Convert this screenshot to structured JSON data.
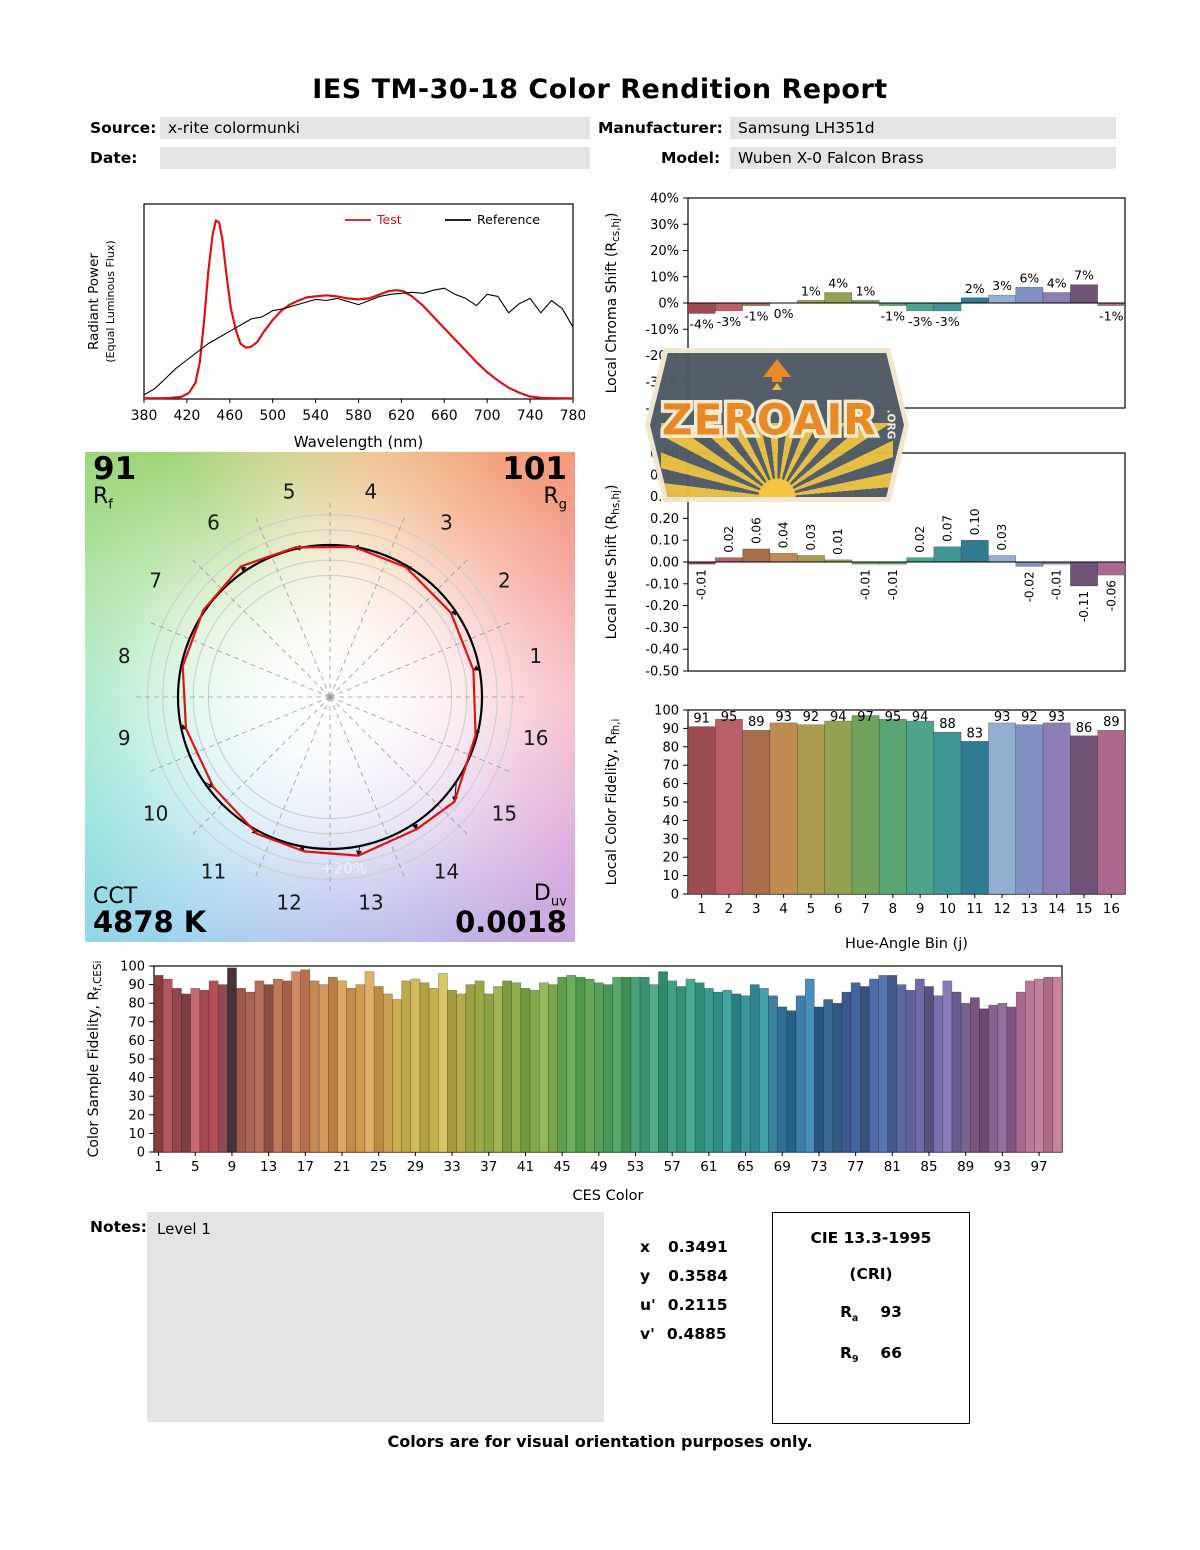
{
  "page": {
    "title": "IES TM-30-18 Color Rendition Report",
    "footer": "Colors are for visual orientation purposes only.",
    "watermark": {
      "main": "ZEROAIR",
      "org": ".ORG"
    }
  },
  "header": {
    "source_label": "Source:",
    "source_value": "x-rite colormunki",
    "manufacturer_label": "Manufacturer:",
    "manufacturer_value": "Samsung LH351d",
    "date_label": "Date:",
    "date_value": "",
    "model_label": "Model:",
    "model_value": "Wuben X-0 Falcon Brass"
  },
  "cvg": {
    "rf_value": "91",
    "rf_label": "R",
    "rf_sub": "f",
    "rg_value": "101",
    "rg_label": "R",
    "rg_sub": "g",
    "cct_label": "CCT",
    "cct_value": "4878 K",
    "duv_label": "D",
    "duv_sub": "uv",
    "duv_value": "0.0018",
    "ring_label": "+20%",
    "bin_labels": [
      "1",
      "2",
      "3",
      "4",
      "5",
      "6",
      "7",
      "8",
      "9",
      "10",
      "11",
      "12",
      "13",
      "14",
      "15",
      "16"
    ]
  },
  "notes": {
    "label": "Notes:",
    "value": "Level 1"
  },
  "chromaticity": {
    "rows": [
      {
        "label": "x",
        "value": "0.3491"
      },
      {
        "label": "y",
        "value": "0.3584"
      },
      {
        "label": "u'",
        "value": "0.2115"
      },
      {
        "label": "v'",
        "value": "0.4885"
      }
    ]
  },
  "cri_box": {
    "title": "CIE 13.3-1995",
    "subtitle": "(CRI)",
    "ra_label": "R",
    "ra_sub": "a",
    "ra_value": "93",
    "r9_label": "R",
    "r9_sub": "9",
    "r9_value": "66"
  },
  "hue_bin_colors": [
    "#9c4d52",
    "#bb5f66",
    "#a96e4e",
    "#c08c52",
    "#ab9b50",
    "#95a253",
    "#73a35a",
    "#5ba573",
    "#4da38c",
    "#3f9694",
    "#2e7b92",
    "#93aed0",
    "#8290c3",
    "#8d7fb5",
    "#6f5478",
    "#ab6a8d"
  ],
  "chart_data": [
    {
      "id": "spd",
      "type": "line",
      "xlabel": "Wavelength (nm)",
      "ylabel": "Radiant Power",
      "ylabel2": "(Equal Luminous Flux)",
      "xlim": [
        380,
        780
      ],
      "ylim": [
        0,
        0.95
      ],
      "xticks": [
        380,
        420,
        460,
        500,
        540,
        580,
        620,
        660,
        700,
        740,
        780
      ],
      "legend": [
        {
          "name": "Test",
          "color": "#dd1111",
          "label_color": "#dd1111"
        },
        {
          "name": "Reference",
          "color": "#000000",
          "label_color": "#000000"
        }
      ],
      "series": [
        {
          "name": "Test",
          "color": "#dd1111",
          "width": 2.2,
          "x": [
            380,
            395,
            405,
            415,
            422,
            428,
            432,
            436,
            440,
            444,
            447,
            450,
            453,
            457,
            461,
            466,
            470,
            475,
            480,
            486,
            492,
            500,
            508,
            516,
            524,
            532,
            540,
            550,
            560,
            570,
            580,
            590,
            600,
            608,
            615,
            622,
            630,
            640,
            650,
            660,
            670,
            680,
            690,
            700,
            710,
            720,
            730,
            740,
            750,
            765,
            780
          ],
          "y": [
            0.004,
            0.004,
            0.006,
            0.01,
            0.03,
            0.08,
            0.18,
            0.38,
            0.62,
            0.8,
            0.87,
            0.86,
            0.78,
            0.6,
            0.44,
            0.33,
            0.27,
            0.25,
            0.255,
            0.28,
            0.33,
            0.385,
            0.43,
            0.46,
            0.48,
            0.495,
            0.5,
            0.505,
            0.5,
            0.49,
            0.485,
            0.49,
            0.51,
            0.525,
            0.53,
            0.525,
            0.5,
            0.455,
            0.4,
            0.345,
            0.29,
            0.235,
            0.18,
            0.13,
            0.09,
            0.055,
            0.03,
            0.012,
            0.006,
            0.004,
            0.003
          ]
        },
        {
          "name": "Reference",
          "color": "#000000",
          "width": 1.1,
          "x": [
            380,
            390,
            400,
            410,
            420,
            430,
            440,
            450,
            460,
            470,
            480,
            490,
            500,
            510,
            520,
            530,
            540,
            550,
            560,
            570,
            580,
            590,
            600,
            610,
            620,
            630,
            640,
            650,
            660,
            670,
            680,
            690,
            700,
            710,
            720,
            730,
            740,
            750,
            760,
            770,
            780
          ],
          "y": [
            0.02,
            0.05,
            0.1,
            0.15,
            0.19,
            0.23,
            0.27,
            0.3,
            0.33,
            0.36,
            0.39,
            0.4,
            0.43,
            0.44,
            0.455,
            0.47,
            0.485,
            0.48,
            0.49,
            0.475,
            0.46,
            0.48,
            0.5,
            0.51,
            0.515,
            0.52,
            0.515,
            0.53,
            0.54,
            0.51,
            0.49,
            0.455,
            0.51,
            0.5,
            0.42,
            0.465,
            0.49,
            0.42,
            0.48,
            0.44,
            0.35
          ]
        }
      ]
    },
    {
      "id": "chroma_shift",
      "type": "bar",
      "ylabel_rich": [
        {
          "t": "Local Chroma Shift (R"
        },
        {
          "t": "cs,hj",
          "sub": true
        },
        {
          "t": ")"
        }
      ],
      "ylim": [
        -40,
        40
      ],
      "yticks": [
        40,
        30,
        20,
        10,
        0,
        -10,
        -20,
        -30,
        -40
      ],
      "ytick_labels": [
        "40%",
        "30%",
        "20%",
        "10%",
        "0%",
        "-10%",
        "-20%",
        "-30%",
        "-40%"
      ],
      "categories": [
        1,
        2,
        3,
        4,
        5,
        6,
        7,
        8,
        9,
        10,
        11,
        12,
        13,
        14,
        15,
        16
      ],
      "values": [
        -4,
        -3,
        -1,
        0,
        1,
        4,
        1,
        -1,
        -3,
        -3,
        2,
        3,
        6,
        4,
        7,
        -1
      ],
      "labels": [
        "-4%",
        "-3%",
        "-1%",
        "0%",
        "1%",
        "4%",
        "1%",
        "-1%",
        "-3%",
        "-3%",
        "2%",
        "3%",
        "6%",
        "4%",
        "7%",
        "-1%"
      ]
    },
    {
      "id": "hue_shift",
      "type": "bar",
      "ylabel_rich": [
        {
          "t": "Local Hue Shift (R"
        },
        {
          "t": "hs,hj",
          "sub": true
        },
        {
          "t": ")"
        }
      ],
      "ylim": [
        -0.5,
        0.5
      ],
      "yticks": [
        0.5,
        0.4,
        0.3,
        0.2,
        0.1,
        0,
        -0.1,
        -0.2,
        -0.3,
        -0.4,
        -0.5
      ],
      "ytick_labels": [
        "0.50",
        "0.40",
        "0.30",
        "0.20",
        "0.10",
        "0.00",
        "-0.10",
        "-0.20",
        "-0.30",
        "-0.40",
        "-0.50"
      ],
      "categories": [
        1,
        2,
        3,
        4,
        5,
        6,
        7,
        8,
        9,
        10,
        11,
        12,
        13,
        14,
        15,
        16
      ],
      "values": [
        -0.01,
        0.02,
        0.06,
        0.04,
        0.03,
        0.01,
        -0.01,
        -0.01,
        0.02,
        0.07,
        0.1,
        0.03,
        -0.02,
        -0.01,
        -0.11,
        -0.06
      ],
      "labels": [
        "-0.01",
        "0.02",
        "0.06",
        "0.04",
        "0.03",
        "0.01",
        "-0.01",
        "-0.01",
        "0.02",
        "0.07",
        "0.10",
        "0.03",
        "-0.02",
        "-0.01",
        "-0.11",
        "-0.06"
      ]
    },
    {
      "id": "local_fidelity",
      "type": "bar",
      "ylabel_rich": [
        {
          "t": "Local Color Fidelity, R"
        },
        {
          "t": "fh,i",
          "sub": true
        }
      ],
      "xlabel": "Hue-Angle Bin (j)",
      "ylim": [
        0,
        100
      ],
      "yticks": [
        100,
        90,
        80,
        70,
        60,
        50,
        40,
        30,
        20,
        10,
        0
      ],
      "ytick_labels": [
        "100",
        "90",
        "80",
        "70",
        "60",
        "50",
        "40",
        "30",
        "20",
        "10",
        "0"
      ],
      "categories": [
        1,
        2,
        3,
        4,
        5,
        6,
        7,
        8,
        9,
        10,
        11,
        12,
        13,
        14,
        15,
        16
      ],
      "xticks": [
        1,
        2,
        3,
        4,
        5,
        6,
        7,
        8,
        9,
        10,
        11,
        12,
        13,
        14,
        15,
        16
      ],
      "values": [
        91,
        95,
        89,
        93,
        92,
        94,
        97,
        95,
        94,
        88,
        83,
        93,
        92,
        93,
        86,
        89
      ],
      "labels": [
        "91",
        "95",
        "89",
        "93",
        "92",
        "94",
        "97",
        "95",
        "94",
        "88",
        "83",
        "93",
        "92",
        "93",
        "86",
        "89"
      ]
    },
    {
      "id": "ces",
      "type": "bar",
      "ylabel_rich": [
        {
          "t": "Color Sample Fidelity, R"
        },
        {
          "t": "f,CESi",
          "sub": true
        }
      ],
      "xlabel": "CES Color",
      "ylim": [
        0,
        100
      ],
      "yticks": [
        100,
        90,
        80,
        70,
        60,
        50,
        40,
        30,
        20,
        10,
        0
      ],
      "ytick_labels": [
        "100",
        "90",
        "80",
        "70",
        "60",
        "50",
        "40",
        "30",
        "20",
        "10",
        "0"
      ],
      "xticks": [
        1,
        5,
        9,
        13,
        17,
        21,
        25,
        29,
        33,
        37,
        41,
        45,
        49,
        53,
        57,
        61,
        65,
        69,
        73,
        77,
        81,
        85,
        89,
        93,
        97
      ],
      "values": [
        95,
        93,
        88,
        85,
        88,
        87,
        92,
        90,
        99,
        88,
        86,
        92,
        90,
        93,
        92,
        97,
        98,
        92,
        90,
        94,
        92,
        88,
        90,
        97,
        89,
        85,
        82,
        92,
        93,
        91,
        88,
        96,
        87,
        85,
        90,
        92,
        85,
        89,
        92,
        91,
        88,
        87,
        91,
        90,
        94,
        95,
        94,
        93,
        91,
        90,
        94,
        94,
        94,
        94,
        90,
        97,
        92,
        89,
        93,
        91,
        88,
        86,
        87,
        85,
        84,
        90,
        88,
        84,
        78,
        76,
        84,
        93,
        78,
        82,
        80,
        86,
        91,
        89,
        93,
        95,
        95,
        90,
        87,
        93,
        89,
        84,
        92,
        86,
        80,
        83,
        77,
        79,
        80,
        78,
        86,
        92,
        93,
        94,
        94
      ],
      "colors": [
        "#8a3a3f",
        "#b05a5f",
        "#96454a",
        "#7d3f45",
        "#c96a6e",
        "#a34a50",
        "#b45055",
        "#8f4a55",
        "#463238",
        "#9c5a4a",
        "#aa6450",
        "#b3705a",
        "#8a4f3d",
        "#c07a5a",
        "#a65f46",
        "#d08a62",
        "#b86f4e",
        "#c58a50",
        "#d29a5a",
        "#b97f45",
        "#dca761",
        "#c08c4a",
        "#cf9a52",
        "#e0b06a",
        "#ba8a43",
        "#caa054",
        "#ccae4e",
        "#bfa845",
        "#d4bc5c",
        "#b3a040",
        "#c2b14d",
        "#d8c865",
        "#a89a3f",
        "#b5ab4c",
        "#9fa044",
        "#9aa848",
        "#8ba343",
        "#a3b455",
        "#7d9c40",
        "#90ad4e",
        "#6f9a42",
        "#83a94f",
        "#95b85c",
        "#7aa64a",
        "#5f9e4e",
        "#6fae5c",
        "#4f9a48",
        "#62a856",
        "#55a05a",
        "#47965a",
        "#58a86b",
        "#3f8f55",
        "#4aa078",
        "#3b9470",
        "#52ad88",
        "#2f8a68",
        "#41a083",
        "#359078",
        "#4aab94",
        "#2f8a76",
        "#3a9a93",
        "#2f8a88",
        "#45a5a3",
        "#2a7f82",
        "#3a959c",
        "#2f858f",
        "#44a0ad",
        "#3a7f9e",
        "#2f6f93",
        "#27608a",
        "#3d7fa8",
        "#4a8fb8",
        "#2a567e",
        "#3a6a94",
        "#305a85",
        "#3a5a8f",
        "#44669c",
        "#37507e",
        "#4f6da6",
        "#5a77b0",
        "#45588c",
        "#5a6aa0",
        "#64609c",
        "#6f6aa8",
        "#595082",
        "#7a6fae",
        "#8a7cb8",
        "#6a5a90",
        "#77638f",
        "#7a5580",
        "#6a4a70",
        "#8a6292",
        "#956f9d",
        "#80557f",
        "#a8688f",
        "#b87a9a",
        "#c2829f",
        "#ad6a88",
        "#c9849c"
      ]
    }
  ]
}
